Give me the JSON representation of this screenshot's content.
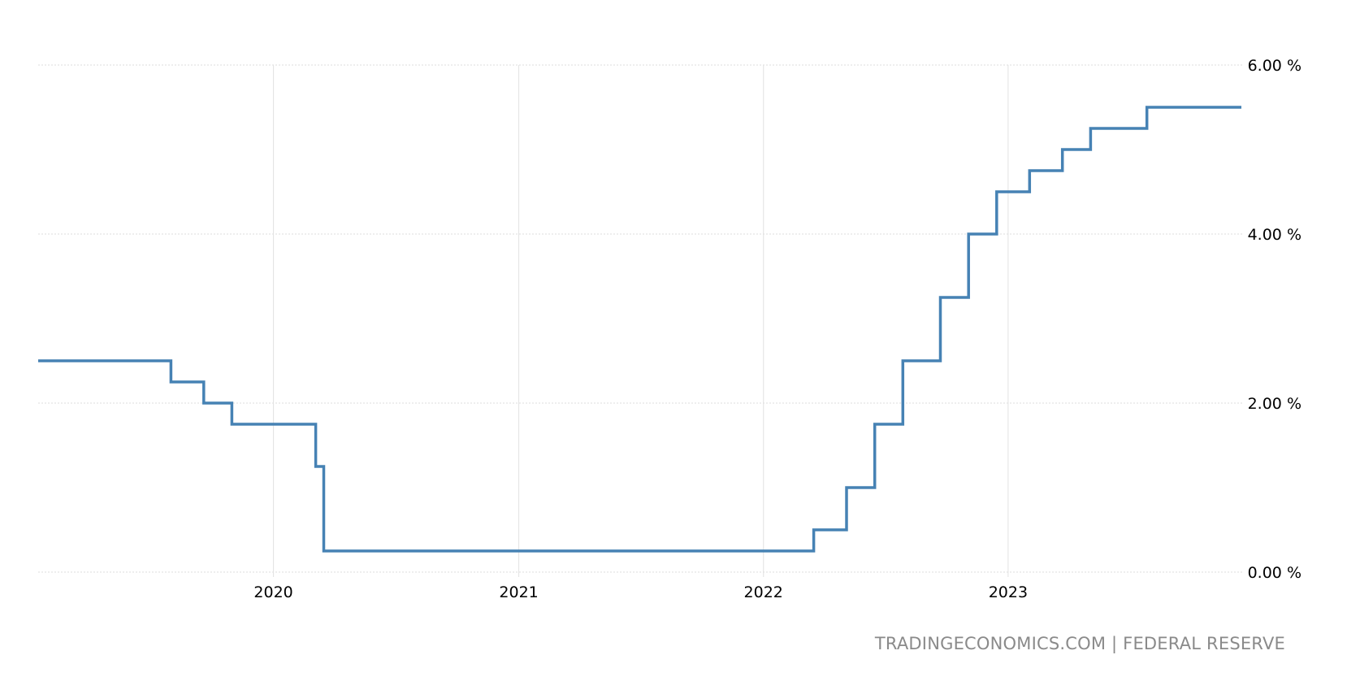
{
  "chart_data": {
    "type": "line",
    "step": true,
    "ylim": [
      0,
      6
    ],
    "y_ticks": [
      {
        "value": 0,
        "label": "0.00 %"
      },
      {
        "value": 2,
        "label": "2.00 %"
      },
      {
        "value": 4,
        "label": "4.00 %"
      },
      {
        "value": 6,
        "label": "6.00 %"
      }
    ],
    "y_axis_position": "right",
    "xlim": [
      "2019-01-15",
      "2023-12-15"
    ],
    "x_ticks": [
      {
        "value": "2020-01-01",
        "label": "2020"
      },
      {
        "value": "2021-01-01",
        "label": "2021"
      },
      {
        "value": "2022-01-01",
        "label": "2022"
      },
      {
        "value": "2023-01-01",
        "label": "2023"
      }
    ],
    "grid": true,
    "legend": "none",
    "line_color": "#4682b4",
    "series": [
      {
        "points": [
          {
            "x": "2019-01-15",
            "y": 2.5
          },
          {
            "x": "2019-08-01",
            "y": 2.25
          },
          {
            "x": "2019-09-19",
            "y": 2.0
          },
          {
            "x": "2019-10-31",
            "y": 1.75
          },
          {
            "x": "2020-03-04",
            "y": 1.25
          },
          {
            "x": "2020-03-16",
            "y": 0.25
          },
          {
            "x": "2022-03-17",
            "y": 0.5
          },
          {
            "x": "2022-05-05",
            "y": 1.0
          },
          {
            "x": "2022-06-16",
            "y": 1.75
          },
          {
            "x": "2022-07-28",
            "y": 2.5
          },
          {
            "x": "2022-09-22",
            "y": 3.25
          },
          {
            "x": "2022-11-03",
            "y": 4.0
          },
          {
            "x": "2022-12-15",
            "y": 4.5
          },
          {
            "x": "2023-02-02",
            "y": 4.75
          },
          {
            "x": "2023-03-23",
            "y": 5.0
          },
          {
            "x": "2023-05-04",
            "y": 5.25
          },
          {
            "x": "2023-07-27",
            "y": 5.5
          },
          {
            "x": "2023-12-15",
            "y": 5.5
          }
        ]
      }
    ]
  },
  "source": "TRADINGECONOMICS.COM | FEDERAL RESERVE"
}
